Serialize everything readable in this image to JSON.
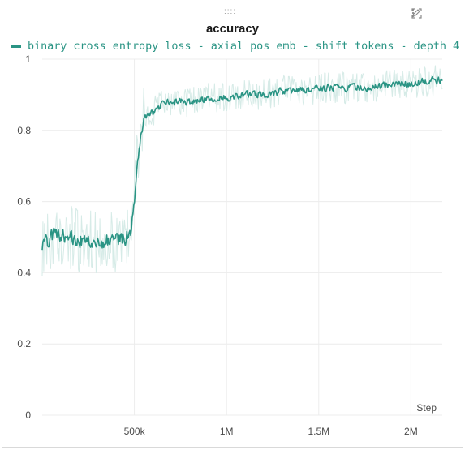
{
  "panel": {
    "title": "accuracy",
    "drag_handle": "::::",
    "tools": [
      "pencil-icon",
      "fullscreen-icon",
      "more-vert-icon"
    ]
  },
  "colors": {
    "series": "#2a9484",
    "series_light": "#d6ebe7",
    "grid": "#ececec",
    "axis_text": "#4a4a4a"
  },
  "chart_data": {
    "type": "line",
    "title": "accuracy",
    "xlabel": "Step",
    "ylabel": "",
    "xlim": [
      0,
      2170000
    ],
    "ylim": [
      0,
      1
    ],
    "grid": true,
    "legend_position": "top-left",
    "x_ticks": [
      500000,
      1000000,
      1500000,
      2000000
    ],
    "x_tick_labels": [
      "500k",
      "1M",
      "1.5M",
      "2M"
    ],
    "y_ticks": [
      0,
      0.2,
      0.4,
      0.6,
      0.8,
      1
    ],
    "y_tick_labels": [
      "0",
      "0.2",
      "0.4",
      "0.6",
      "0.8",
      "1"
    ],
    "series": [
      {
        "name": "binary cross entropy loss - axial pos emb - shift tokens - depth 4",
        "smoothed": true,
        "x": [
          0,
          50000,
          100000,
          150000,
          200000,
          250000,
          300000,
          350000,
          400000,
          450000,
          480000,
          500000,
          520000,
          540000,
          560000,
          600000,
          650000,
          700000,
          750000,
          800000,
          900000,
          1000000,
          1100000,
          1200000,
          1300000,
          1400000,
          1500000,
          1600000,
          1700000,
          1800000,
          1900000,
          2000000,
          2100000,
          2170000
        ],
        "y": [
          0.48,
          0.5,
          0.51,
          0.5,
          0.49,
          0.5,
          0.48,
          0.49,
          0.49,
          0.5,
          0.52,
          0.6,
          0.75,
          0.82,
          0.84,
          0.85,
          0.87,
          0.88,
          0.88,
          0.88,
          0.89,
          0.89,
          0.9,
          0.9,
          0.91,
          0.91,
          0.92,
          0.92,
          0.92,
          0.92,
          0.93,
          0.93,
          0.94,
          0.94
        ]
      }
    ]
  }
}
